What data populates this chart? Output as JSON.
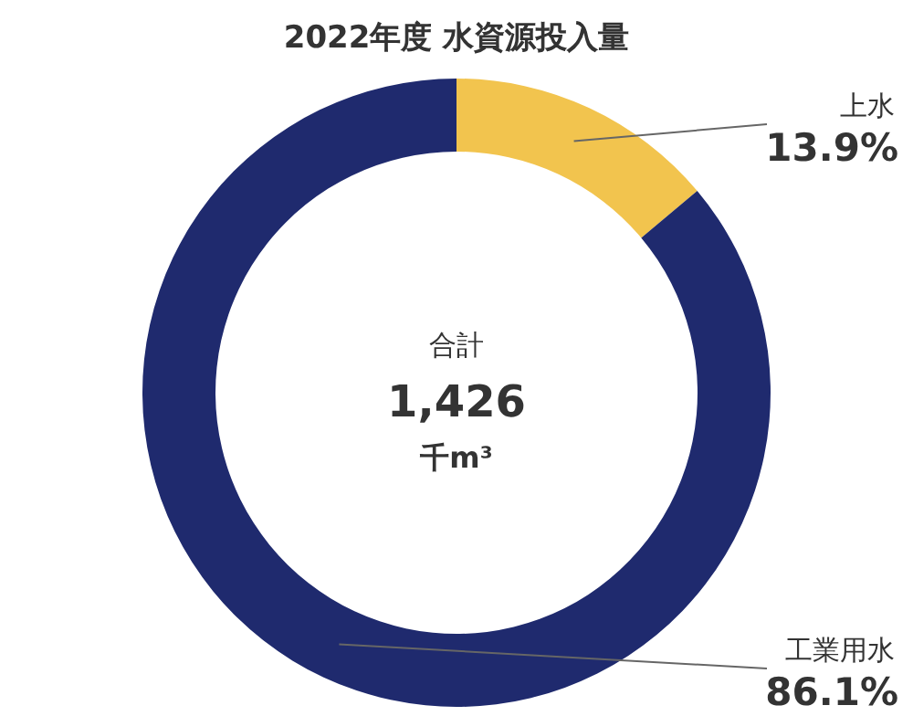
{
  "chart_data": {
    "type": "donut",
    "title": "2022年度 水資源投入量",
    "categories": [
      "上水",
      "工業用水"
    ],
    "values": [
      13.9,
      86.1
    ],
    "colors": [
      "#f2c44e",
      "#1f2a6e"
    ],
    "value_labels": [
      "13.9%",
      "86.1%"
    ],
    "annotations": [
      "合計",
      "1,426",
      "千m³"
    ],
    "legend": false
  }
}
